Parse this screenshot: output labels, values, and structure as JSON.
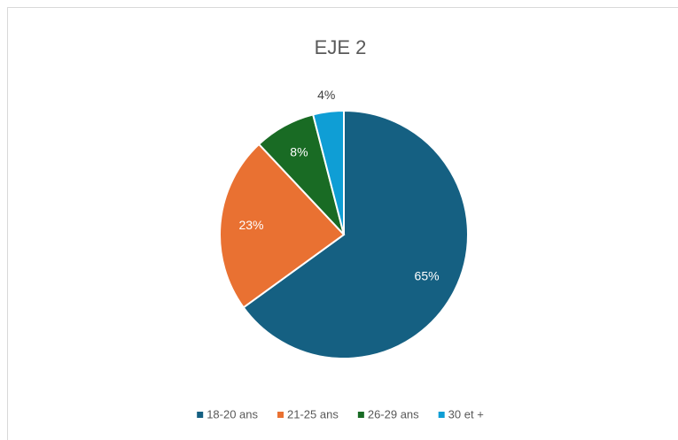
{
  "chart_data": {
    "type": "pie",
    "title": "EJE 2",
    "categories": [
      "18-20 ans",
      "21-25 ans",
      "26-29 ans",
      "30 et +"
    ],
    "values": [
      65,
      23,
      8,
      4
    ],
    "value_labels": [
      "65%",
      "23%",
      "8%",
      "4%"
    ],
    "colors": [
      "#156082",
      "#e97132",
      "#196b24",
      "#0f9ed5"
    ],
    "legend": "bottom"
  }
}
